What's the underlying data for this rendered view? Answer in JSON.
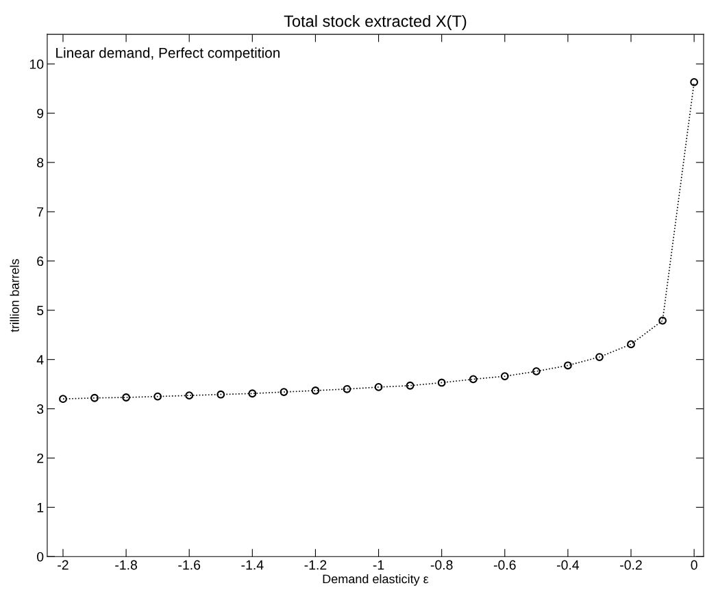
{
  "chart_data": {
    "type": "line",
    "title": "Total stock extracted X(T)",
    "xlabel": "Demand elasticity ε",
    "ylabel": "trillion barrels",
    "annotations": [
      "Linear demand, Perfect competition"
    ],
    "x": [
      -2,
      -1.9,
      -1.8,
      -1.7,
      -1.6,
      -1.5,
      -1.4,
      -1.3,
      -1.2,
      -1.1,
      -1,
      -0.9,
      -0.8,
      -0.7,
      -0.6,
      -0.5,
      -0.4,
      -0.3,
      -0.2,
      -0.1,
      0
    ],
    "series": [
      {
        "color": "#000000",
        "values": [
          3.2,
          3.22,
          3.23,
          3.25,
          3.27,
          3.29,
          3.31,
          3.34,
          3.37,
          3.4,
          3.44,
          3.47,
          3.53,
          3.6,
          3.66,
          3.76,
          3.88,
          4.05,
          4.31,
          4.79,
          9.63
        ]
      }
    ],
    "xlim": [
      -2.05,
      0.03
    ],
    "ylim": [
      0,
      10.6
    ],
    "xticks": [
      -2,
      -1.8,
      -1.6,
      -1.4,
      -1.2,
      -1,
      -0.8,
      -0.6,
      -0.4,
      -0.2,
      0
    ],
    "yticks": [
      0,
      1,
      2,
      3,
      4,
      5,
      6,
      7,
      8,
      9,
      10
    ],
    "grid": false,
    "legend": false,
    "marker": "circle",
    "line_style": "dotted"
  }
}
